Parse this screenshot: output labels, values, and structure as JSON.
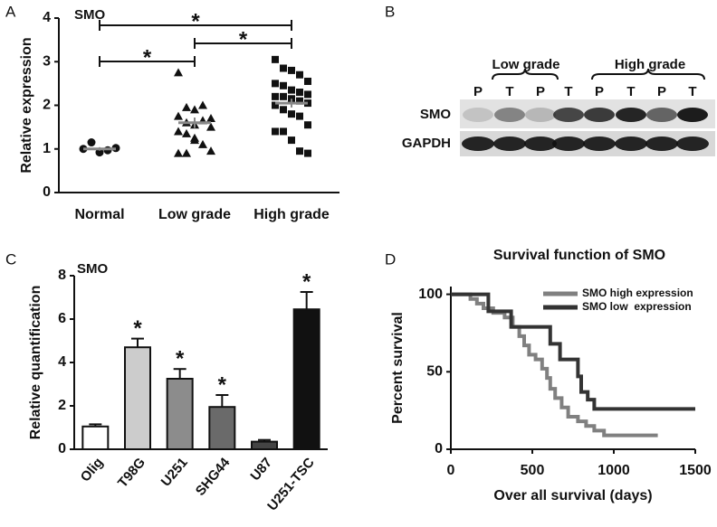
{
  "panels": [
    "A",
    "B",
    "C",
    "D"
  ],
  "blot": {
    "groups": [
      "Low grade",
      "High grade"
    ],
    "lanes": [
      "P",
      "T",
      "P",
      "T",
      "P",
      "T",
      "P",
      "T"
    ],
    "rows": [
      "SMO",
      "GAPDH"
    ]
  },
  "chart_data": [
    {
      "type": "dotplot",
      "title": "SMO",
      "y_label": "Relative expression",
      "categories": [
        "Normal",
        "Low grade",
        "High grade"
      ],
      "markers": [
        "circle",
        "triangle",
        "square"
      ],
      "values": [
        [
          1.0,
          1.15,
          0.92,
          0.97,
          1.02
        ],
        [
          2.75,
          1.95,
          1.9,
          2.0,
          1.7,
          1.75,
          1.6,
          1.55,
          1.65,
          1.5,
          1.4,
          1.35,
          1.25,
          1.1,
          0.95,
          0.9,
          0.9,
          1.2
        ],
        [
          3.05,
          2.85,
          2.8,
          2.7,
          2.55,
          2.5,
          2.45,
          2.35,
          2.3,
          2.25,
          2.2,
          2.2,
          2.15,
          2.1,
          2.05,
          2.0,
          1.9,
          1.8,
          1.75,
          1.55,
          1.4,
          1.4,
          1.2,
          0.95,
          0.9
        ]
      ],
      "means": [
        1.0,
        1.6,
        2.05
      ],
      "errors": [
        0.04,
        0.12,
        0.1
      ],
      "brackets": [
        {
          "pair": [
            0,
            2
          ],
          "label": "*"
        },
        {
          "pair": [
            1,
            2
          ],
          "label": "*"
        },
        {
          "pair": [
            0,
            1
          ],
          "label": "*"
        }
      ],
      "ylim": [
        0,
        4
      ],
      "yticks": [
        0,
        1,
        2,
        3,
        4
      ]
    },
    {
      "type": "bar",
      "title": "SMO",
      "y_label": "Relative quantification",
      "categories": [
        "Olig",
        "T98G",
        "U251",
        "SHG44",
        "U87",
        "U251-TSC"
      ],
      "values": [
        1.05,
        4.7,
        3.25,
        1.95,
        0.35,
        6.45
      ],
      "errors": [
        0.1,
        0.4,
        0.45,
        0.55,
        0.08,
        0.8
      ],
      "colors": [
        "#ffffff",
        "#cccccc",
        "#8c8c8c",
        "#6a6a6a",
        "#444444",
        "#111111"
      ],
      "significance": [
        null,
        "*",
        "*",
        "*",
        null,
        "*"
      ],
      "ylim": [
        0,
        8
      ],
      "yticks": [
        0,
        2,
        4,
        6,
        8
      ]
    },
    {
      "type": "step",
      "title": "Survival function of SMO",
      "x_label": "Over all survival (days)",
      "y_label": "Percent survival",
      "series": [
        {
          "name": "SMO high expression",
          "color": "#808080",
          "x": [
            0,
            120,
            120,
            160,
            160,
            200,
            200,
            260,
            260,
            330,
            330,
            380,
            380,
            420,
            420,
            450,
            450,
            480,
            480,
            520,
            520,
            560,
            560,
            590,
            590,
            610,
            610,
            640,
            640,
            680,
            680,
            720,
            720,
            780,
            780,
            830,
            830,
            880,
            880,
            940,
            940,
            1270
          ],
          "values": [
            100,
            100,
            97,
            97,
            94,
            94,
            91,
            91,
            88,
            88,
            85,
            85,
            79,
            79,
            73,
            73,
            67,
            67,
            61,
            61,
            58,
            58,
            52,
            52,
            46,
            46,
            39,
            39,
            33,
            33,
            27,
            27,
            21,
            21,
            18,
            18,
            15,
            15,
            12,
            12,
            9,
            9
          ]
        },
        {
          "name": "SMO low  expression",
          "color": "#333333",
          "x": [
            0,
            230,
            230,
            370,
            370,
            610,
            610,
            670,
            670,
            780,
            780,
            800,
            800,
            840,
            840,
            880,
            880,
            1500
          ],
          "values": [
            100,
            100,
            89,
            89,
            79,
            79,
            68,
            68,
            58,
            58,
            47,
            47,
            37,
            37,
            32,
            32,
            26,
            26
          ]
        }
      ],
      "xlim": [
        0,
        1500
      ],
      "xticks": [
        0,
        500,
        1000,
        1500
      ],
      "ylim": [
        0,
        105
      ],
      "yticks": [
        0,
        50,
        100
      ]
    }
  ]
}
